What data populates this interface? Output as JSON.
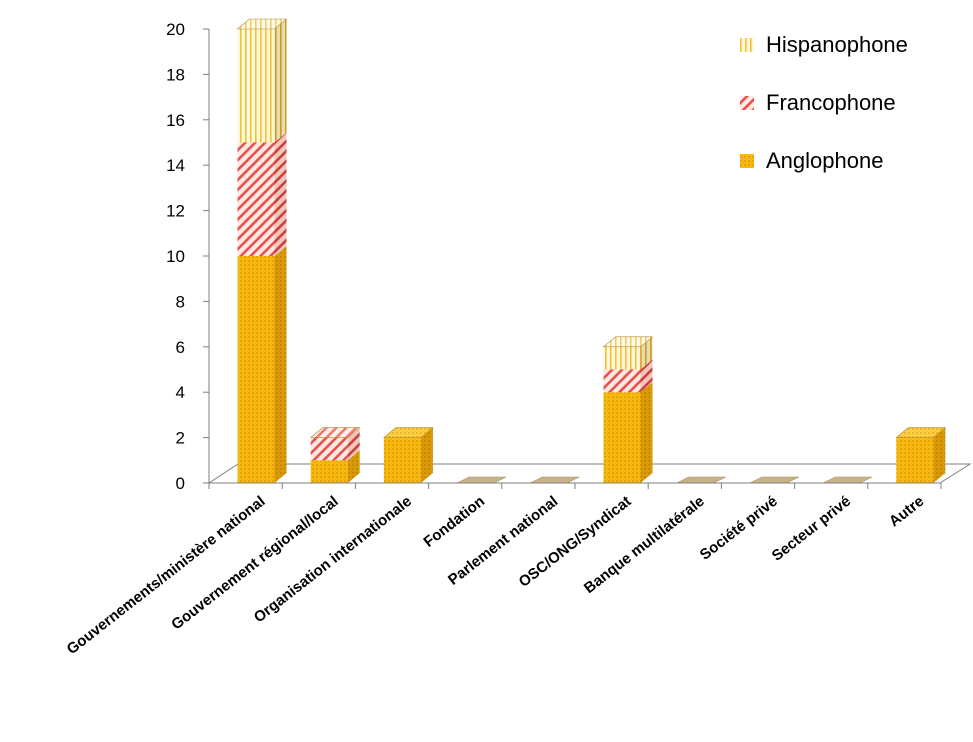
{
  "chart_data": {
    "type": "bar",
    "stacked": true,
    "three_d": true,
    "categories": [
      "Gouvernements/ministère national",
      "Gouvernement régional/local",
      "Organisation internationale",
      "Fondation",
      "Parlement national",
      "OSC/ONG/Syndicat",
      "Banque multilatérale",
      "Société privé",
      "Secteur privé",
      "Autre"
    ],
    "series": [
      {
        "name": "Anglophone",
        "values": [
          10,
          1,
          2,
          0,
          0,
          4,
          0,
          0,
          0,
          2
        ],
        "color": "#f6b90f",
        "pattern": "dots"
      },
      {
        "name": "Francophone",
        "values": [
          5,
          1,
          0,
          0,
          0,
          1,
          0,
          0,
          0,
          0
        ],
        "color": "#e8504a",
        "pattern": "diagonal-stripes"
      },
      {
        "name": "Hispanophone",
        "values": [
          5,
          0,
          0,
          0,
          0,
          1,
          0,
          0,
          0,
          0
        ],
        "color": "#f3c233",
        "pattern": "vertical-stripes"
      }
    ],
    "ylim": [
      0,
      20
    ],
    "yticks": [
      "0",
      "2",
      "4",
      "6",
      "8",
      "10",
      "12",
      "14",
      "16",
      "18",
      "20"
    ],
    "legend_position": "top-right",
    "grid": false
  }
}
